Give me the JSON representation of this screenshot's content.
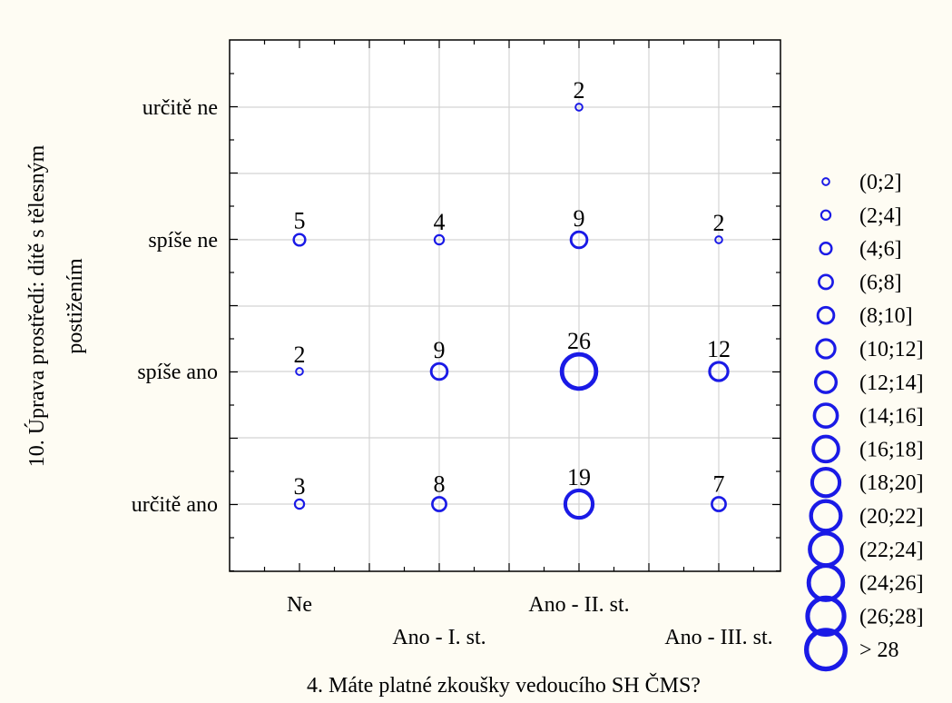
{
  "chart_data": {
    "type": "scatter",
    "subtype": "categorized-bubble",
    "xlabel": "4. Máte platné zkoušky vedoucího SH ČMS?",
    "ylabel_lines": [
      "10. Úprava prostředí: dítě s tělesným",
      "postižením"
    ],
    "x_categories": [
      "Ne",
      "Ano - I. st.",
      "Ano - II. st.",
      "Ano - III. st."
    ],
    "y_categories": [
      "určitě ano",
      "spíše ano",
      "spíše ne",
      "určitě ne"
    ],
    "points": [
      {
        "x": "Ne",
        "y": "spíše ne",
        "count": 5
      },
      {
        "x": "Ne",
        "y": "spíše ano",
        "count": 2
      },
      {
        "x": "Ne",
        "y": "určitě ano",
        "count": 3
      },
      {
        "x": "Ano - I. st.",
        "y": "spíše ne",
        "count": 4
      },
      {
        "x": "Ano - I. st.",
        "y": "spíše ano",
        "count": 9
      },
      {
        "x": "Ano - I. st.",
        "y": "určitě ano",
        "count": 8
      },
      {
        "x": "Ano - II. st.",
        "y": "určitě ne",
        "count": 2
      },
      {
        "x": "Ano - II. st.",
        "y": "spíše ne",
        "count": 9
      },
      {
        "x": "Ano - II. st.",
        "y": "spíše ano",
        "count": 26
      },
      {
        "x": "Ano - II. st.",
        "y": "určitě ano",
        "count": 19
      },
      {
        "x": "Ano - III. st.",
        "y": "spíše ne",
        "count": 2
      },
      {
        "x": "Ano - III. st.",
        "y": "spíše ano",
        "count": 12
      },
      {
        "x": "Ano - III. st.",
        "y": "určitě ano",
        "count": 7
      }
    ],
    "legend": {
      "placement": "right",
      "entries": [
        "(0;2]",
        "(2;4]",
        "(4;6]",
        "(6;8]",
        "(8;10]",
        "(10;12]",
        "(12;14]",
        "(14;16]",
        "(16;18]",
        "(18;20]",
        "(20;22]",
        "(22;24]",
        "(24;26]",
        "(26;28]",
        "> 28"
      ]
    },
    "grid": true,
    "colors": {
      "bubble": "#1a1ae6",
      "background": "#fefcf3",
      "plot_background": "#ffffff",
      "grid": "#d4d4d4"
    }
  }
}
